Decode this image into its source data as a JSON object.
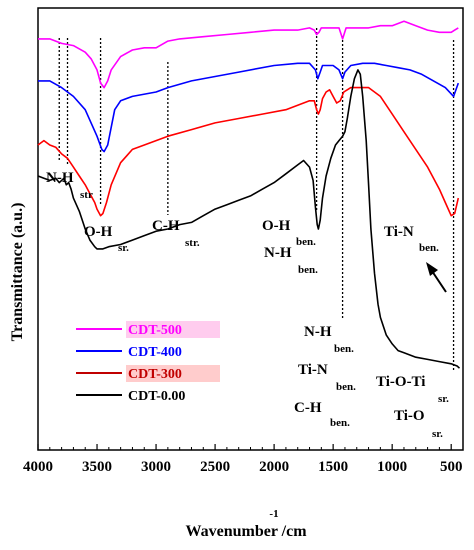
{
  "chart_data": {
    "type": "line",
    "xlabel": "Wavenumber /cm",
    "xlabel_sup": "-1",
    "ylabel": "Transmittance (a.u.)",
    "xlim": [
      4000,
      400
    ],
    "x_reversed": true,
    "xticks": [
      4000,
      3500,
      3000,
      2500,
      2000,
      1500,
      1000,
      500
    ],
    "yticks_shown": false,
    "grid": false,
    "legend_position": "lower-left",
    "series": [
      {
        "name": "CDT-500",
        "color": "#ff00ff",
        "points": [
          [
            4000,
            0.93
          ],
          [
            3900,
            0.93
          ],
          [
            3800,
            0.92
          ],
          [
            3700,
            0.915
          ],
          [
            3600,
            0.9
          ],
          [
            3550,
            0.885
          ],
          [
            3500,
            0.86
          ],
          [
            3470,
            0.83
          ],
          [
            3440,
            0.82
          ],
          [
            3410,
            0.835
          ],
          [
            3380,
            0.86
          ],
          [
            3300,
            0.89
          ],
          [
            3200,
            0.905
          ],
          [
            3100,
            0.91
          ],
          [
            3000,
            0.91
          ],
          [
            2900,
            0.925
          ],
          [
            2800,
            0.93
          ],
          [
            2600,
            0.935
          ],
          [
            2400,
            0.94
          ],
          [
            2200,
            0.945
          ],
          [
            2000,
            0.95
          ],
          [
            1800,
            0.95
          ],
          [
            1700,
            0.955
          ],
          [
            1660,
            0.95
          ],
          [
            1640,
            0.94
          ],
          [
            1620,
            0.945
          ],
          [
            1600,
            0.955
          ],
          [
            1500,
            0.955
          ],
          [
            1450,
            0.955
          ],
          [
            1420,
            0.93
          ],
          [
            1390,
            0.955
          ],
          [
            1300,
            0.955
          ],
          [
            1200,
            0.955
          ],
          [
            1100,
            0.96
          ],
          [
            1000,
            0.96
          ],
          [
            950,
            0.965
          ],
          [
            900,
            0.97
          ],
          [
            850,
            0.965
          ],
          [
            800,
            0.96
          ],
          [
            700,
            0.95
          ],
          [
            600,
            0.945
          ],
          [
            500,
            0.945
          ],
          [
            470,
            0.95
          ],
          [
            440,
            0.955
          ]
        ]
      },
      {
        "name": "CDT-400",
        "color": "#0000ff",
        "points": [
          [
            4000,
            0.835
          ],
          [
            3900,
            0.835
          ],
          [
            3800,
            0.82
          ],
          [
            3700,
            0.8
          ],
          [
            3600,
            0.77
          ],
          [
            3550,
            0.74
          ],
          [
            3500,
            0.71
          ],
          [
            3460,
            0.68
          ],
          [
            3440,
            0.675
          ],
          [
            3410,
            0.69
          ],
          [
            3380,
            0.73
          ],
          [
            3350,
            0.77
          ],
          [
            3300,
            0.79
          ],
          [
            3200,
            0.8
          ],
          [
            3000,
            0.81
          ],
          [
            2900,
            0.82
          ],
          [
            2700,
            0.835
          ],
          [
            2500,
            0.845
          ],
          [
            2300,
            0.855
          ],
          [
            2000,
            0.87
          ],
          [
            1800,
            0.875
          ],
          [
            1700,
            0.875
          ],
          [
            1650,
            0.86
          ],
          [
            1630,
            0.84
          ],
          [
            1610,
            0.855
          ],
          [
            1590,
            0.87
          ],
          [
            1500,
            0.87
          ],
          [
            1450,
            0.86
          ],
          [
            1420,
            0.84
          ],
          [
            1400,
            0.855
          ],
          [
            1350,
            0.87
          ],
          [
            1250,
            0.875
          ],
          [
            1150,
            0.875
          ],
          [
            1050,
            0.87
          ],
          [
            950,
            0.865
          ],
          [
            850,
            0.86
          ],
          [
            750,
            0.85
          ],
          [
            650,
            0.835
          ],
          [
            550,
            0.82
          ],
          [
            480,
            0.8
          ],
          [
            440,
            0.83
          ]
        ]
      },
      {
        "name": "CDT-300",
        "color": "#ff0000",
        "points": [
          [
            4000,
            0.69
          ],
          [
            3950,
            0.7
          ],
          [
            3900,
            0.69
          ],
          [
            3850,
            0.685
          ],
          [
            3800,
            0.67
          ],
          [
            3750,
            0.66
          ],
          [
            3700,
            0.64
          ],
          [
            3650,
            0.62
          ],
          [
            3600,
            0.6
          ],
          [
            3560,
            0.58
          ],
          [
            3520,
            0.56
          ],
          [
            3500,
            0.545
          ],
          [
            3470,
            0.53
          ],
          [
            3450,
            0.535
          ],
          [
            3420,
            0.56
          ],
          [
            3380,
            0.6
          ],
          [
            3300,
            0.65
          ],
          [
            3200,
            0.68
          ],
          [
            3100,
            0.69
          ],
          [
            3000,
            0.7
          ],
          [
            2900,
            0.71
          ],
          [
            2700,
            0.725
          ],
          [
            2500,
            0.74
          ],
          [
            2300,
            0.75
          ],
          [
            2100,
            0.76
          ],
          [
            1900,
            0.77
          ],
          [
            1800,
            0.78
          ],
          [
            1700,
            0.79
          ],
          [
            1660,
            0.79
          ],
          [
            1640,
            0.77
          ],
          [
            1625,
            0.76
          ],
          [
            1610,
            0.77
          ],
          [
            1590,
            0.795
          ],
          [
            1560,
            0.81
          ],
          [
            1530,
            0.815
          ],
          [
            1500,
            0.8
          ],
          [
            1470,
            0.785
          ],
          [
            1440,
            0.79
          ],
          [
            1410,
            0.81
          ],
          [
            1380,
            0.815
          ],
          [
            1350,
            0.82
          ],
          [
            1300,
            0.82
          ],
          [
            1250,
            0.82
          ],
          [
            1200,
            0.82
          ],
          [
            1100,
            0.8
          ],
          [
            1000,
            0.76
          ],
          [
            900,
            0.72
          ],
          [
            800,
            0.68
          ],
          [
            700,
            0.64
          ],
          [
            600,
            0.59
          ],
          [
            550,
            0.56
          ],
          [
            500,
            0.53
          ],
          [
            470,
            0.535
          ],
          [
            440,
            0.57
          ]
        ]
      },
      {
        "name": "CDT-0.00",
        "color": "#000000",
        "points": [
          [
            4000,
            0.62
          ],
          [
            3950,
            0.615
          ],
          [
            3900,
            0.61
          ],
          [
            3850,
            0.615
          ],
          [
            3820,
            0.605
          ],
          [
            3800,
            0.61
          ],
          [
            3780,
            0.615
          ],
          [
            3760,
            0.6
          ],
          [
            3740,
            0.605
          ],
          [
            3720,
            0.59
          ],
          [
            3700,
            0.57
          ],
          [
            3650,
            0.54
          ],
          [
            3600,
            0.5
          ],
          [
            3560,
            0.475
          ],
          [
            3520,
            0.46
          ],
          [
            3500,
            0.455
          ],
          [
            3450,
            0.455
          ],
          [
            3400,
            0.46
          ],
          [
            3300,
            0.465
          ],
          [
            3200,
            0.475
          ],
          [
            3100,
            0.485
          ],
          [
            3000,
            0.495
          ],
          [
            2900,
            0.5
          ],
          [
            2800,
            0.51
          ],
          [
            2700,
            0.515
          ],
          [
            2600,
            0.53
          ],
          [
            2500,
            0.545
          ],
          [
            2400,
            0.555
          ],
          [
            2300,
            0.565
          ],
          [
            2200,
            0.575
          ],
          [
            2100,
            0.59
          ],
          [
            2000,
            0.605
          ],
          [
            1900,
            0.625
          ],
          [
            1800,
            0.645
          ],
          [
            1750,
            0.655
          ],
          [
            1700,
            0.64
          ],
          [
            1670,
            0.61
          ],
          [
            1650,
            0.55
          ],
          [
            1635,
            0.51
          ],
          [
            1625,
            0.5
          ],
          [
            1610,
            0.52
          ],
          [
            1590,
            0.57
          ],
          [
            1560,
            0.62
          ],
          [
            1520,
            0.66
          ],
          [
            1480,
            0.69
          ],
          [
            1450,
            0.7
          ],
          [
            1420,
            0.71
          ],
          [
            1400,
            0.72
          ],
          [
            1380,
            0.75
          ],
          [
            1350,
            0.8
          ],
          [
            1320,
            0.84
          ],
          [
            1290,
            0.86
          ],
          [
            1270,
            0.85
          ],
          [
            1250,
            0.8
          ],
          [
            1220,
            0.7
          ],
          [
            1200,
            0.6
          ],
          [
            1180,
            0.5
          ],
          [
            1150,
            0.4
          ],
          [
            1120,
            0.33
          ],
          [
            1100,
            0.3
          ],
          [
            1050,
            0.26
          ],
          [
            1000,
            0.24
          ],
          [
            950,
            0.225
          ],
          [
            900,
            0.22
          ],
          [
            800,
            0.21
          ],
          [
            700,
            0.205
          ],
          [
            600,
            0.2
          ],
          [
            500,
            0.195
          ],
          [
            450,
            0.19
          ],
          [
            430,
            0.185
          ]
        ]
      }
    ],
    "legend": [
      {
        "name": "CDT-500",
        "color": "#ff00ff",
        "box": "#ffccee"
      },
      {
        "name": "CDT-400",
        "color": "#0000ff",
        "box": "#ffffff"
      },
      {
        "name": "CDT-300",
        "color": "#c00000",
        "box": "#ffcccc"
      },
      {
        "name": "CDT-0.00",
        "color": "#000000",
        "box": "#ffffff"
      }
    ],
    "annotations": [
      {
        "id": "nh-str",
        "text": "N-H",
        "sub": "str"
      },
      {
        "id": "oh-sr",
        "text": "O-H",
        "sub": "sr."
      },
      {
        "id": "ch-str",
        "text": "C-H",
        "sub": "str."
      },
      {
        "id": "oh-ben",
        "text": "O-H",
        "sub": "ben."
      },
      {
        "id": "nh-ben",
        "text": "N-H",
        "sub": "ben."
      },
      {
        "id": "tin-ben-top",
        "text": "Ti-N",
        "sub": "ben."
      },
      {
        "id": "nh-ben-2",
        "text": "N-H",
        "sub": "ben."
      },
      {
        "id": "tin-ben-2",
        "text": "Ti-N",
        "sub": "ben."
      },
      {
        "id": "tioti-sr",
        "text": "Ti-O-Ti",
        "sub": "sr."
      },
      {
        "id": "ch-ben",
        "text": "C-H",
        "sub": "ben."
      },
      {
        "id": "tio-sr",
        "text": "Ti-O",
        "sub": "sr."
      }
    ],
    "marker_lines_x": [
      3820,
      3750,
      3470,
      2900,
      1640,
      1420,
      480
    ]
  }
}
